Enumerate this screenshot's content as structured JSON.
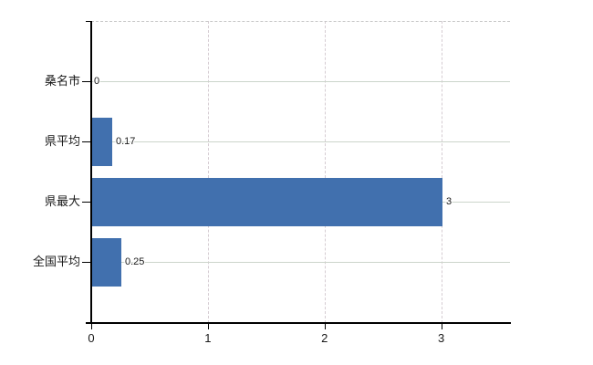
{
  "chart_data": {
    "type": "bar",
    "orientation": "horizontal",
    "title": "",
    "xlabel": "",
    "ylabel": "",
    "categories": [
      "桑名市",
      "県平均",
      "県最大",
      "全国平均"
    ],
    "values": [
      0,
      0.17,
      3,
      0.25
    ],
    "data_labels": [
      "0",
      "0.17",
      "3",
      "0.25"
    ],
    "x_ticks": [
      0,
      1,
      2,
      3
    ],
    "x_tick_labels": [
      "0",
      "1",
      "2",
      "3"
    ],
    "xlim": [
      0,
      3.59
    ],
    "grid": "on",
    "legend": "none"
  },
  "colors": {
    "bar": "#4170ae",
    "horizontal_grid": "#ccd5cb",
    "vertical_grid": "#d5ccd2",
    "axis": "#000000",
    "top_border": "#c8c8c8",
    "text": "#1a1a1a",
    "background": "#ffffff"
  }
}
